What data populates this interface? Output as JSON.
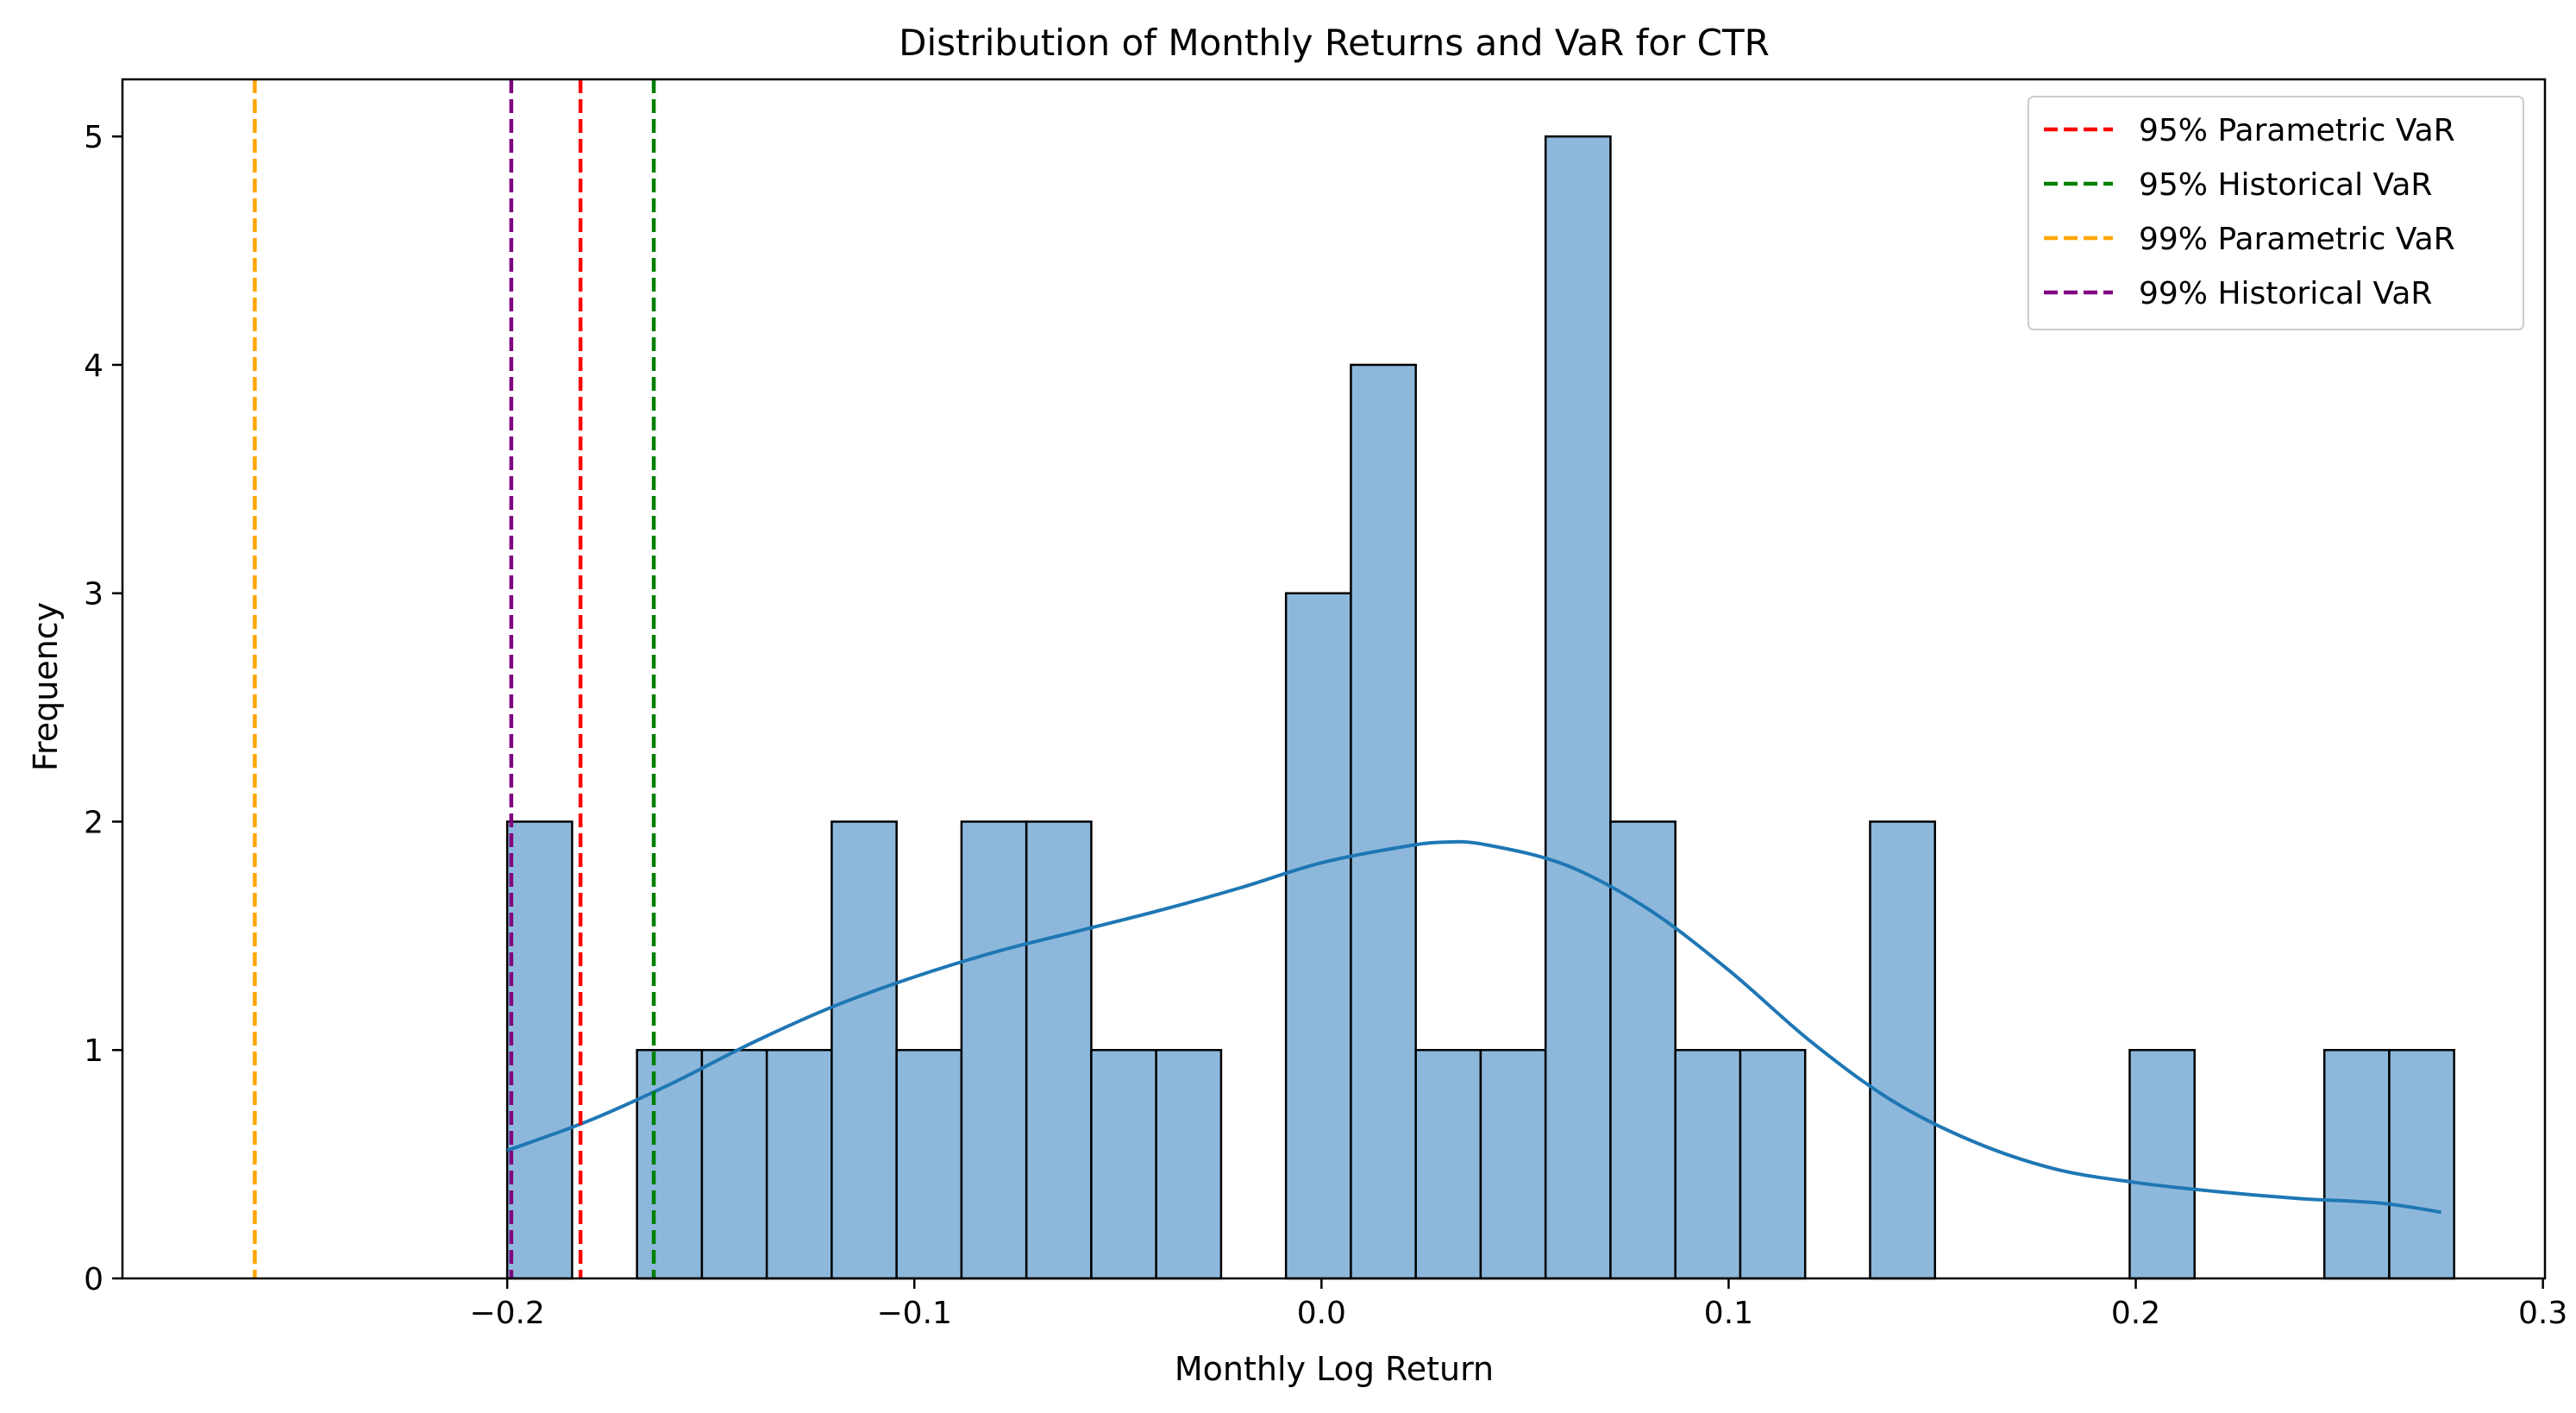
{
  "chart_data": {
    "type": "bar",
    "title": "Distribution of Monthly Returns and VaR for CTR",
    "xlabel": "Monthly Log Return",
    "ylabel": "Frequency",
    "xlim": [
      -0.2945,
      0.3005
    ],
    "ylim": [
      0,
      5.25
    ],
    "grid": false,
    "legend_position": "top-right",
    "xticks": [
      -0.2,
      -0.1,
      0.0,
      0.1,
      0.2,
      0.3
    ],
    "xtick_labels": [
      "−0.2",
      "−0.1",
      "0.0",
      "0.1",
      "0.2",
      "0.3"
    ],
    "yticks": [
      0,
      1,
      2,
      3,
      4,
      5
    ],
    "ytick_labels": [
      "0",
      "1",
      "2",
      "3",
      "4",
      "5"
    ],
    "histogram": {
      "bin_start": -0.2,
      "bin_width": 0.01594,
      "counts": [
        2,
        0,
        1,
        1,
        1,
        2,
        1,
        2,
        2,
        1,
        1,
        0,
        3,
        4,
        1,
        1,
        5,
        2,
        1,
        1,
        0,
        2,
        0,
        0,
        0,
        1,
        0,
        0,
        1,
        1
      ],
      "fill_color": "#8db8dc",
      "edge_color": "#000000"
    },
    "kde": {
      "color": "#1f77b4",
      "x": [
        -0.2,
        -0.18,
        -0.16,
        -0.14,
        -0.12,
        -0.1,
        -0.08,
        -0.06,
        -0.04,
        -0.02,
        0.0,
        0.02,
        0.03,
        0.04,
        0.06,
        0.08,
        0.1,
        0.12,
        0.14,
        0.16,
        0.18,
        0.2,
        0.22,
        0.24,
        0.26,
        0.275
      ],
      "y": [
        0.56,
        0.69,
        0.85,
        1.03,
        1.19,
        1.32,
        1.43,
        1.52,
        1.61,
        1.71,
        1.82,
        1.89,
        1.91,
        1.9,
        1.81,
        1.62,
        1.35,
        1.04,
        0.78,
        0.6,
        0.48,
        0.42,
        0.38,
        0.35,
        0.33,
        0.29
      ]
    },
    "vlines": [
      {
        "name": "95% Parametric VaR",
        "x": -0.182,
        "color": "#ff0000"
      },
      {
        "name": "95% Historical VaR",
        "x": -0.164,
        "color": "#008000"
      },
      {
        "name": "99% Parametric VaR",
        "x": -0.262,
        "color": "#ffa500"
      },
      {
        "name": "99% Historical VaR",
        "x": -0.199,
        "color": "#800080"
      }
    ]
  }
}
